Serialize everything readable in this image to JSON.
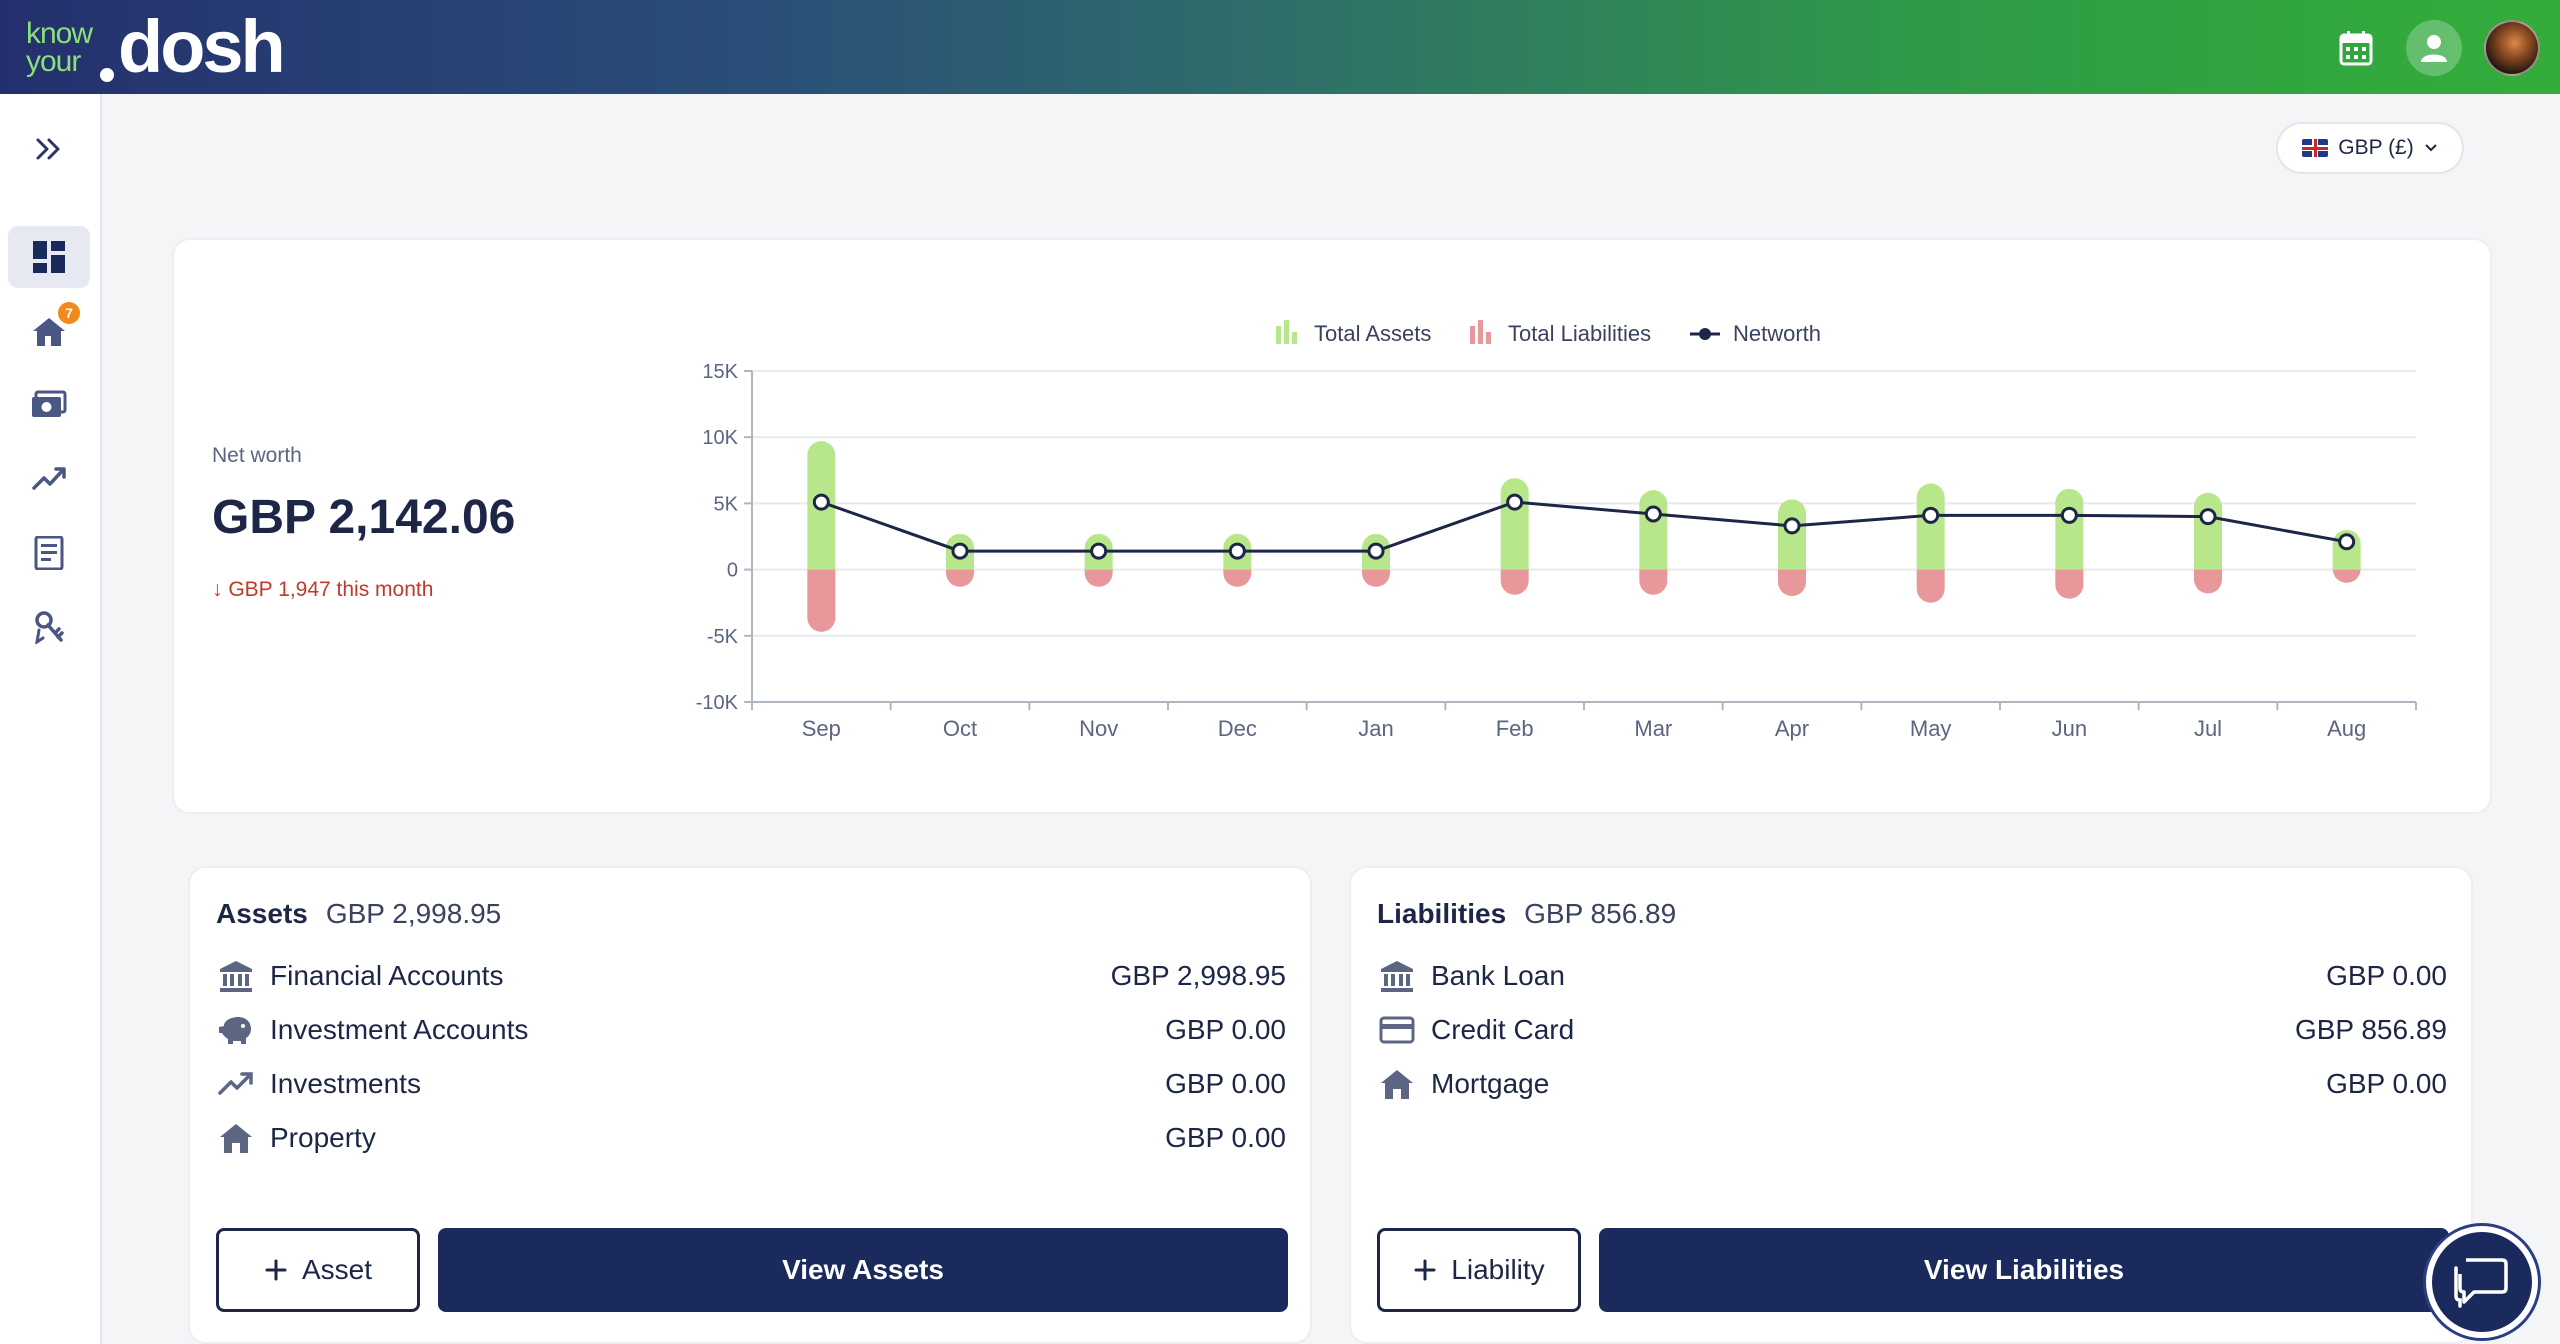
{
  "header": {
    "logo_small_1": "know",
    "logo_small_2": "your",
    "logo_big": "dosh",
    "icons": [
      "calendar-icon",
      "user-icon",
      "profile-avatar"
    ]
  },
  "sidebar": {
    "items": [
      {
        "name": "expand-icon"
      },
      {
        "name": "dashboard-icon",
        "active": true
      },
      {
        "name": "property-icon",
        "badge": "7"
      },
      {
        "name": "money-icon"
      },
      {
        "name": "investments-icon"
      },
      {
        "name": "documents-icon"
      },
      {
        "name": "keys-icon"
      }
    ]
  },
  "currency": {
    "label": "GBP (£)"
  },
  "networth": {
    "label": "Net worth",
    "value": "GBP 2,142.06",
    "change": "↓ GBP 1,947 this month"
  },
  "colors": {
    "assets": "#b8e68a",
    "liabilities": "#e8979a",
    "networth": "#1d2647",
    "primary": "#1b2a5c"
  },
  "chart_data": {
    "type": "bar",
    "categories": [
      "Sep",
      "Oct",
      "Nov",
      "Dec",
      "Jan",
      "Feb",
      "Mar",
      "Apr",
      "May",
      "Jun",
      "Jul",
      "Aug"
    ],
    "series": [
      {
        "name": "Total Assets",
        "type": "bar",
        "values": [
          9700,
          2700,
          2700,
          2700,
          2700,
          6900,
          6000,
          5300,
          6500,
          6100,
          5800,
          3000
        ]
      },
      {
        "name": "Total Liabilities",
        "type": "bar",
        "values": [
          -4700,
          -1300,
          -1300,
          -1300,
          -1300,
          -1900,
          -1900,
          -2000,
          -2500,
          -2200,
          -1800,
          -1000
        ]
      },
      {
        "name": "Networth",
        "type": "line",
        "values": [
          5100,
          1400,
          1400,
          1400,
          1400,
          5100,
          4200,
          3300,
          4100,
          4100,
          4000,
          2100
        ]
      }
    ],
    "yticks": [
      "15K",
      "10K",
      "5K",
      "0",
      "-5K",
      "-10K"
    ],
    "ylim": [
      -10000,
      15000
    ],
    "grid": true,
    "legend_position": "top"
  },
  "assets": {
    "title": "Assets",
    "total": "GBP 2,998.95",
    "rows": [
      {
        "icon": "bank-icon",
        "label": "Financial Accounts",
        "value": "GBP 2,998.95"
      },
      {
        "icon": "piggy-bank-icon",
        "label": "Investment Accounts",
        "value": "GBP 0.00"
      },
      {
        "icon": "trending-up-icon",
        "label": "Investments",
        "value": "GBP 0.00"
      },
      {
        "icon": "home-icon",
        "label": "Property",
        "value": "GBP 0.00"
      }
    ],
    "add_label": "Asset",
    "view_label": "View Assets"
  },
  "liabilities": {
    "title": "Liabilities",
    "total": "GBP 856.89",
    "rows": [
      {
        "icon": "bank-icon",
        "label": "Bank Loan",
        "value": "GBP 0.00"
      },
      {
        "icon": "credit-card-icon",
        "label": "Credit Card",
        "value": "GBP 856.89"
      },
      {
        "icon": "home-icon",
        "label": "Mortgage",
        "value": "GBP 0.00"
      }
    ],
    "add_label": "Liability",
    "view_label": "View Liabilities"
  }
}
